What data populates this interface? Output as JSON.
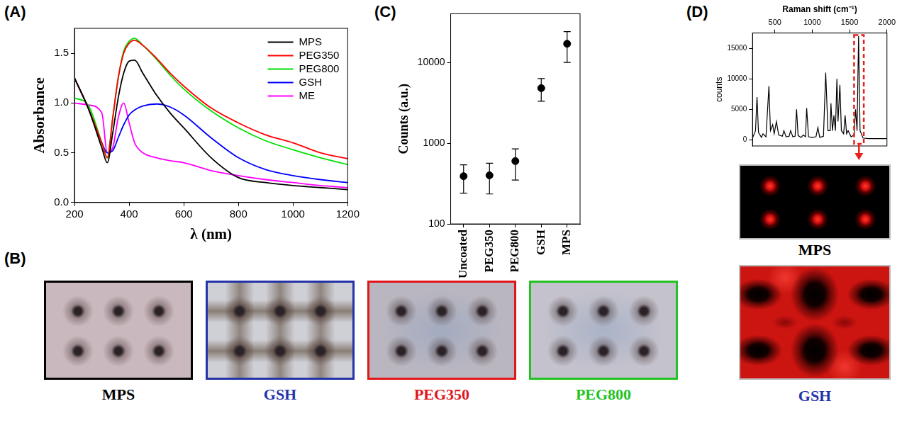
{
  "panel_labels": [
    "(A)",
    "(B)",
    "(C)",
    "(D)"
  ],
  "chart_data": [
    {
      "type": "line",
      "x_label": "λ (nm)",
      "y_label": "Absorbance",
      "x": [
        200,
        250,
        300,
        320,
        340,
        360,
        380,
        400,
        420,
        450,
        500,
        550,
        600,
        700,
        800,
        900,
        1000,
        1100,
        1200
      ],
      "series": [
        {
          "name": "MPS",
          "color": "#000000",
          "values": [
            1.25,
            0.95,
            0.55,
            0.4,
            0.7,
            1.05,
            1.3,
            1.42,
            1.43,
            1.3,
            1.08,
            0.9,
            0.75,
            0.45,
            0.25,
            0.2,
            0.17,
            0.15,
            0.13
          ]
        },
        {
          "name": "PEG350",
          "color": "#ff0000",
          "values": [
            1.25,
            0.95,
            0.6,
            0.45,
            0.85,
            1.25,
            1.5,
            1.6,
            1.63,
            1.58,
            1.45,
            1.3,
            1.17,
            0.95,
            0.8,
            0.68,
            0.6,
            0.5,
            0.44
          ]
        },
        {
          "name": "PEG800",
          "color": "#00e000",
          "values": [
            1.05,
            0.98,
            0.6,
            0.45,
            0.85,
            1.25,
            1.52,
            1.62,
            1.65,
            1.58,
            1.44,
            1.28,
            1.14,
            0.92,
            0.75,
            0.62,
            0.53,
            0.45,
            0.38
          ]
        },
        {
          "name": "GSH",
          "color": "#0000ff",
          "values": [
            1.25,
            0.95,
            0.6,
            0.5,
            0.52,
            0.65,
            0.78,
            0.88,
            0.93,
            0.97,
            0.99,
            0.96,
            0.88,
            0.65,
            0.45,
            0.33,
            0.27,
            0.23,
            0.2
          ]
        },
        {
          "name": "ME",
          "color": "#ff00ff",
          "values": [
            1.0,
            0.98,
            0.9,
            0.5,
            0.55,
            0.85,
            1.0,
            0.8,
            0.6,
            0.5,
            0.45,
            0.42,
            0.4,
            0.32,
            0.27,
            0.23,
            0.2,
            0.17,
            0.15
          ]
        }
      ],
      "xlim": [
        200,
        1200
      ],
      "xticks": [
        200,
        400,
        600,
        800,
        1000,
        1200
      ],
      "ylim": [
        0,
        1.75
      ],
      "yticks": [
        {
          "value": 0,
          "label": "0.0"
        },
        0.5,
        {
          "value": 1,
          "label": "1.0"
        },
        1.5
      ],
      "legend": "upper right",
      "grid": false
    },
    {
      "type": "scatter",
      "y_label": "Counts (a.u.)",
      "categories": [
        "Uncoated",
        "PEG350",
        "PEG800",
        "GSH",
        "MPS"
      ],
      "values": [
        390,
        400,
        600,
        4800,
        17000
      ],
      "errors": [
        150,
        165,
        250,
        1500,
        7000
      ],
      "ylim": [
        100,
        40000
      ],
      "yticks": [
        100,
        1000,
        10000
      ],
      "log": "y",
      "color": "#000000",
      "marker": "circle",
      "grid": false
    },
    {
      "type": "line",
      "x_label": "Raman shift (cm⁻¹)",
      "y_label": "counts",
      "x": [
        200,
        240,
        260,
        280,
        320,
        340,
        380,
        420,
        440,
        470,
        490,
        520,
        550,
        600,
        620,
        650,
        690,
        710,
        740,
        770,
        790,
        810,
        850,
        880,
        910,
        925,
        950,
        1000,
        1050,
        1075,
        1100,
        1150,
        1180,
        1210,
        1240,
        1250,
        1270,
        1290,
        1310,
        1330,
        1345,
        1370,
        1390,
        1420,
        1440,
        1460,
        1480,
        1520,
        1560,
        1580,
        1600,
        1620,
        1640,
        1680,
        1750,
        1850,
        2000
      ],
      "values": [
        300,
        1500,
        7000,
        1200,
        400,
        1000,
        500,
        8800,
        1500,
        2500,
        1000,
        3000,
        800,
        600,
        1500,
        500,
        600,
        1500,
        500,
        600,
        5000,
        700,
        400,
        800,
        500,
        5200,
        500,
        400,
        500,
        2000,
        400,
        600,
        11000,
        1500,
        1500,
        6000,
        1500,
        4000,
        1500,
        10000,
        3000,
        9000,
        1500,
        1000,
        4000,
        1000,
        1500,
        500,
        800,
        5000,
        1500,
        17000,
        1500,
        300,
        200,
        200,
        200
      ],
      "xlim": [
        200,
        2000
      ],
      "xticks": [
        500,
        1000,
        1500,
        2000
      ],
      "ylim": [
        -1000,
        17500
      ],
      "yticks": [
        0,
        5000,
        10000,
        15000
      ],
      "highlight_range": [
        1560,
        1690
      ],
      "color": "#000000",
      "grid": false
    }
  ],
  "photos": [
    {
      "label": "MPS",
      "color": "#000000"
    },
    {
      "label": "GSH",
      "color": "#2433a8"
    },
    {
      "label": "PEG350",
      "color": "#e0161b"
    },
    {
      "label": "PEG800",
      "color": "#22c322"
    }
  ],
  "maps": [
    {
      "label": "MPS",
      "color": "#000000"
    },
    {
      "label": "GSH",
      "color": "#2433a8"
    }
  ]
}
